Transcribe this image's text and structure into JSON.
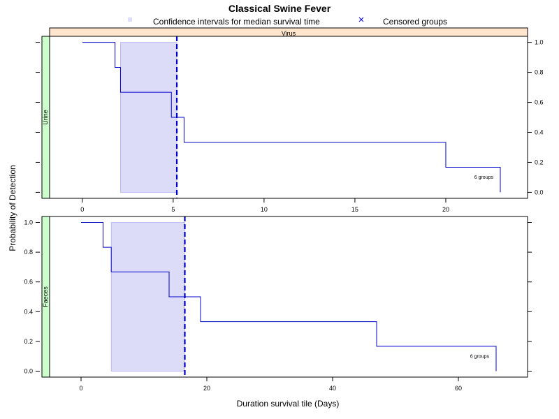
{
  "chart_data": {
    "type": "line",
    "title": "Classical Swine Fever",
    "xlabel": "Duration survival tile (Days)",
    "ylabel": "Probability of Detection",
    "column_strip": "Virus",
    "legend": {
      "placement": "top",
      "items": [
        {
          "label": "Confidence intervals for median survival time",
          "symbol": "square",
          "color": "#ddddff"
        },
        {
          "label": "Censored groups",
          "symbol": "x",
          "color": "#0000cc"
        }
      ]
    },
    "colors": {
      "line": "#0000cc",
      "ci_fill": "#dcdcf8",
      "ci_edge": "#b0b0f0",
      "median": "#0000cc",
      "column_strip": "#ffe5cc",
      "row_strip": "#ccffcc"
    },
    "grid": false,
    "panels": [
      {
        "row_label": "Urine",
        "xlim": [
          -1.8,
          24.5
        ],
        "ylim": [
          -0.04,
          1.04
        ],
        "x_ticks": [
          0,
          5,
          10,
          15,
          20
        ],
        "y_ticks": [
          0.0,
          0.2,
          0.4,
          0.6,
          0.8,
          1.0
        ],
        "y_tick_labels_side": "right",
        "step": {
          "x": [
            0,
            1.8,
            2.1,
            4.9,
            5.6,
            20,
            23
          ],
          "y": [
            1.0,
            0.833,
            0.667,
            0.5,
            0.333,
            0.167,
            0.0
          ]
        },
        "ci": [
          2.1,
          5.2
        ],
        "median": 5.2,
        "note": "6 groups"
      },
      {
        "row_label": "Faeces",
        "xlim": [
          -5,
          71
        ],
        "ylim": [
          -0.04,
          1.04
        ],
        "x_ticks": [
          0,
          20,
          40,
          60
        ],
        "y_ticks": [
          0.0,
          0.2,
          0.4,
          0.6,
          0.8,
          1.0
        ],
        "y_tick_labels_side": "left",
        "step": {
          "x": [
            0,
            3.5,
            4.8,
            14,
            19,
            47,
            66
          ],
          "y": [
            1.0,
            0.833,
            0.667,
            0.5,
            0.333,
            0.167,
            0.0
          ]
        },
        "ci": [
          4.8,
          16.5
        ],
        "median": 16.5,
        "note": "6 groups"
      }
    ]
  }
}
